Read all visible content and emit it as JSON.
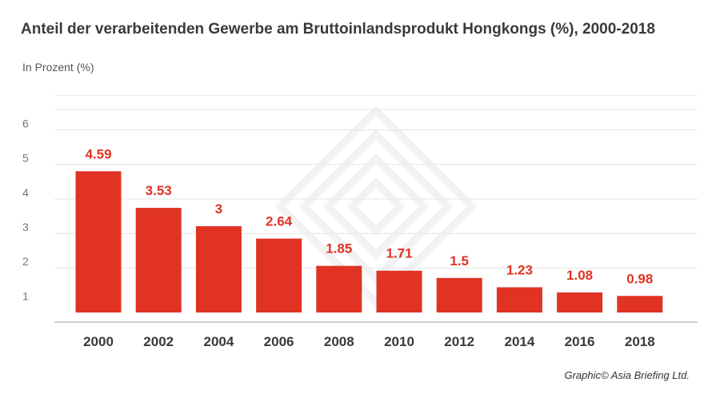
{
  "header": {
    "title": "Anteil der verarbeitenden Gewerbe am Bruttoinlandsprodukt Hongkongs (%), 2000-2018",
    "unit_label": "In Prozent (%)"
  },
  "footer": {
    "credit": "Graphic© Asia Briefing Ltd."
  },
  "colors": {
    "bar": "#e03323",
    "value_label": "#e03323",
    "gridline": "#e6e6e6",
    "axis": "#cfcfcf"
  },
  "chart_data": {
    "type": "bar",
    "title": "Anteil der verarbeitenden Gewerbe am Bruttoinlandsprodukt Hongkongs (%), 2000-2018",
    "ylabel": "In Prozent (%)",
    "xlabel": "",
    "categories": [
      "2000",
      "2002",
      "2004",
      "2006",
      "2008",
      "2010",
      "2012",
      "2014",
      "2016",
      "2018"
    ],
    "values": [
      4.59,
      3.53,
      3,
      2.64,
      1.85,
      1.71,
      1.5,
      1.23,
      1.08,
      0.98
    ],
    "value_labels": [
      "4.59",
      "3.53",
      "3",
      "2.64",
      "1.85",
      "1.71",
      "1.5",
      "1.23",
      "1.08",
      "0.98"
    ],
    "y_ticks": [
      1,
      2,
      3,
      4,
      5,
      6
    ],
    "ylim": [
      0.5,
      6.5
    ],
    "grid": true,
    "legend": "none"
  }
}
